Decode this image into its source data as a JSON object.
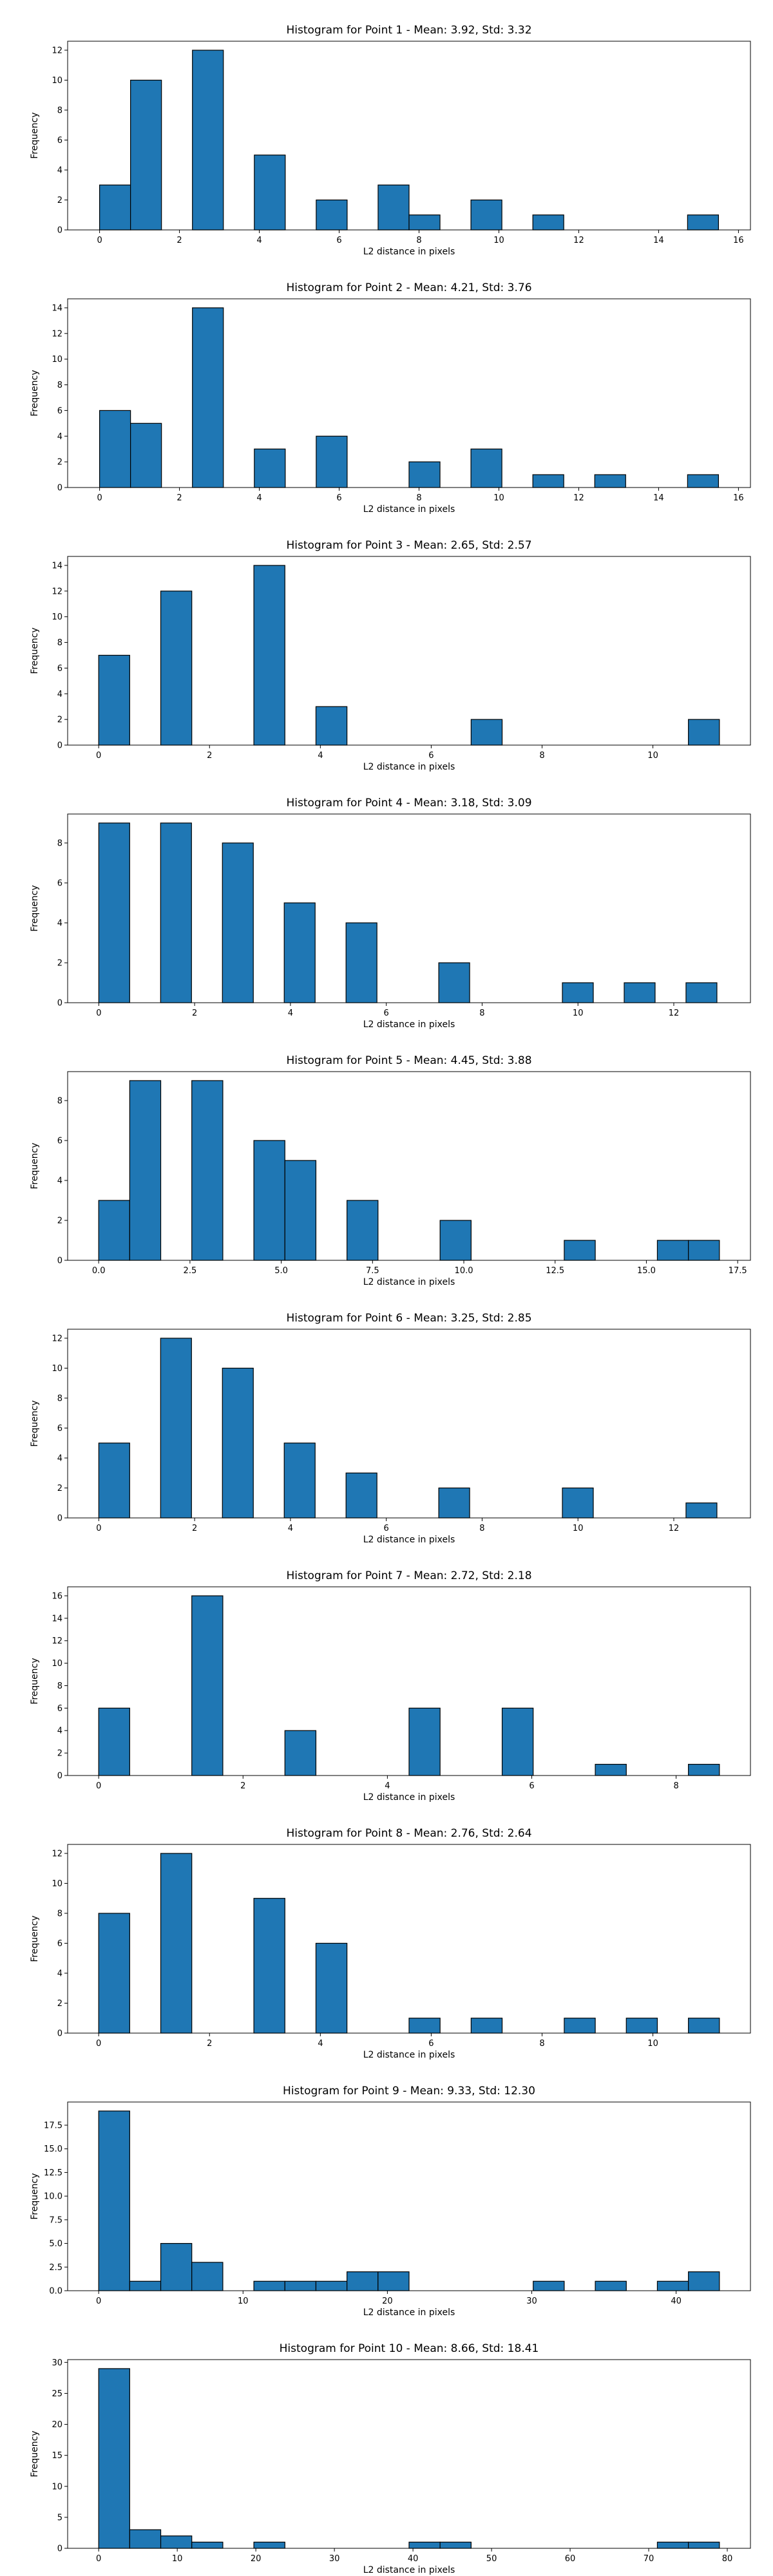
{
  "colors": {
    "bar_fill": "#1f77b4",
    "bar_edge": "#000000"
  },
  "chart_data": [
    {
      "type": "bar",
      "title": "Histogram for Point 1 - Mean: 3.92, Std: 3.32",
      "xlabel": "L2 distance in pixels",
      "ylabel": "Frequency",
      "xlim": [
        -0.8,
        16.3
      ],
      "ylim": [
        0,
        12.6
      ],
      "xticks": [
        0,
        2,
        4,
        6,
        8,
        10,
        12,
        14,
        16
      ],
      "xtick_labels": [
        "0",
        "2",
        "4",
        "6",
        "8",
        "10",
        "12",
        "14",
        "16"
      ],
      "yticks": [
        0,
        2,
        4,
        6,
        8,
        10,
        12
      ],
      "ytick_labels": [
        "0",
        "2",
        "4",
        "6",
        "8",
        "10",
        "12"
      ],
      "bin_width": 0.775,
      "bins": [
        {
          "x": 0.0,
          "count": 3
        },
        {
          "x": 0.775,
          "count": 10
        },
        {
          "x": 2.325,
          "count": 12
        },
        {
          "x": 3.875,
          "count": 5
        },
        {
          "x": 5.425,
          "count": 2
        },
        {
          "x": 6.975,
          "count": 3
        },
        {
          "x": 7.75,
          "count": 1
        },
        {
          "x": 9.3,
          "count": 2
        },
        {
          "x": 10.85,
          "count": 1
        },
        {
          "x": 14.725,
          "count": 1
        }
      ]
    },
    {
      "type": "bar",
      "title": "Histogram for Point 2 - Mean: 4.21, Std: 3.76",
      "xlabel": "L2 distance in pixels",
      "ylabel": "Frequency",
      "xlim": [
        -0.8,
        16.3
      ],
      "ylim": [
        0,
        14.7
      ],
      "xticks": [
        0,
        2,
        4,
        6,
        8,
        10,
        12,
        14,
        16
      ],
      "xtick_labels": [
        "0",
        "2",
        "4",
        "6",
        "8",
        "10",
        "12",
        "14",
        "16"
      ],
      "yticks": [
        0,
        2,
        4,
        6,
        8,
        10,
        12,
        14
      ],
      "ytick_labels": [
        "0",
        "2",
        "4",
        "6",
        "8",
        "10",
        "12",
        "14"
      ],
      "bin_width": 0.775,
      "bins": [
        {
          "x": 0.0,
          "count": 6
        },
        {
          "x": 0.775,
          "count": 5
        },
        {
          "x": 2.325,
          "count": 14
        },
        {
          "x": 3.875,
          "count": 3
        },
        {
          "x": 5.425,
          "count": 4
        },
        {
          "x": 7.75,
          "count": 2
        },
        {
          "x": 9.3,
          "count": 3
        },
        {
          "x": 10.85,
          "count": 1
        },
        {
          "x": 12.4,
          "count": 1
        },
        {
          "x": 14.725,
          "count": 1
        }
      ]
    },
    {
      "type": "bar",
      "title": "Histogram for Point 3 - Mean: 2.65, Std: 2.57",
      "xlabel": "L2 distance in pixels",
      "ylabel": "Frequency",
      "xlim": [
        -0.56,
        11.76
      ],
      "ylim": [
        0,
        14.7
      ],
      "xticks": [
        0,
        2,
        4,
        6,
        8,
        10
      ],
      "xtick_labels": [
        "0",
        "2",
        "4",
        "6",
        "8",
        "10"
      ],
      "yticks": [
        0,
        2,
        4,
        6,
        8,
        10,
        12,
        14
      ],
      "ytick_labels": [
        "0",
        "2",
        "4",
        "6",
        "8",
        "10",
        "12",
        "14"
      ],
      "bin_width": 0.56,
      "bins": [
        {
          "x": 0.0,
          "count": 7
        },
        {
          "x": 1.12,
          "count": 12
        },
        {
          "x": 2.8,
          "count": 14
        },
        {
          "x": 3.92,
          "count": 3
        },
        {
          "x": 6.72,
          "count": 2
        },
        {
          "x": 10.64,
          "count": 2
        }
      ]
    },
    {
      "type": "bar",
      "title": "Histogram for Point 4 - Mean: 3.18, Std: 3.09",
      "xlabel": "L2 distance in pixels",
      "ylabel": "Frequency",
      "xlim": [
        -0.65,
        13.6
      ],
      "ylim": [
        0,
        9.45
      ],
      "xticks": [
        0,
        2,
        4,
        6,
        8,
        10,
        12
      ],
      "xtick_labels": [
        "0",
        "2",
        "4",
        "6",
        "8",
        "10",
        "12"
      ],
      "yticks": [
        0,
        2,
        4,
        6,
        8
      ],
      "ytick_labels": [
        "0",
        "2",
        "4",
        "6",
        "8"
      ],
      "bin_width": 0.645,
      "bins": [
        {
          "x": 0.0,
          "count": 9
        },
        {
          "x": 1.29,
          "count": 9
        },
        {
          "x": 2.58,
          "count": 8
        },
        {
          "x": 3.87,
          "count": 5
        },
        {
          "x": 5.16,
          "count": 4
        },
        {
          "x": 7.095,
          "count": 2
        },
        {
          "x": 9.675,
          "count": 1
        },
        {
          "x": 10.965,
          "count": 1
        },
        {
          "x": 12.255,
          "count": 1
        }
      ]
    },
    {
      "type": "bar",
      "title": "Histogram for Point 5 - Mean: 4.45, Std: 3.88",
      "xlabel": "L2 distance in pixels",
      "ylabel": "Frequency",
      "xlim": [
        -0.85,
        17.85
      ],
      "ylim": [
        0,
        9.45
      ],
      "xticks": [
        0,
        2.5,
        5,
        7.5,
        10,
        12.5,
        15,
        17.5
      ],
      "xtick_labels": [
        "0.0",
        "2.5",
        "5.0",
        "7.5",
        "10.0",
        "12.5",
        "15.0",
        "17.5"
      ],
      "yticks": [
        0,
        2,
        4,
        6,
        8
      ],
      "ytick_labels": [
        "0",
        "2",
        "4",
        "6",
        "8"
      ],
      "bin_width": 0.85,
      "bins": [
        {
          "x": 0.0,
          "count": 3
        },
        {
          "x": 0.85,
          "count": 9
        },
        {
          "x": 2.55,
          "count": 9
        },
        {
          "x": 4.25,
          "count": 6
        },
        {
          "x": 5.1,
          "count": 5
        },
        {
          "x": 6.8,
          "count": 3
        },
        {
          "x": 9.35,
          "count": 2
        },
        {
          "x": 12.75,
          "count": 1
        },
        {
          "x": 15.3,
          "count": 1
        },
        {
          "x": 16.15,
          "count": 1
        }
      ]
    },
    {
      "type": "bar",
      "title": "Histogram for Point 6 - Mean: 3.25, Std: 2.85",
      "xlabel": "L2 distance in pixels",
      "ylabel": "Frequency",
      "xlim": [
        -0.65,
        13.6
      ],
      "ylim": [
        0,
        12.6
      ],
      "xticks": [
        0,
        2,
        4,
        6,
        8,
        10,
        12
      ],
      "xtick_labels": [
        "0",
        "2",
        "4",
        "6",
        "8",
        "10",
        "12"
      ],
      "yticks": [
        0,
        2,
        4,
        6,
        8,
        10,
        12
      ],
      "ytick_labels": [
        "0",
        "2",
        "4",
        "6",
        "8",
        "10",
        "12"
      ],
      "bin_width": 0.645,
      "bins": [
        {
          "x": 0.0,
          "count": 5
        },
        {
          "x": 1.29,
          "count": 12
        },
        {
          "x": 2.58,
          "count": 10
        },
        {
          "x": 3.87,
          "count": 5
        },
        {
          "x": 5.16,
          "count": 3
        },
        {
          "x": 7.095,
          "count": 2
        },
        {
          "x": 9.675,
          "count": 2
        },
        {
          "x": 12.255,
          "count": 1
        }
      ]
    },
    {
      "type": "bar",
      "title": "Histogram for Point 7 - Mean: 2.72, Std: 2.18",
      "xlabel": "L2 distance in pixels",
      "ylabel": "Frequency",
      "xlim": [
        -0.43,
        9.03
      ],
      "ylim": [
        0,
        16.8
      ],
      "xticks": [
        0,
        2,
        4,
        6,
        8
      ],
      "xtick_labels": [
        "0",
        "2",
        "4",
        "6",
        "8"
      ],
      "yticks": [
        0,
        2,
        4,
        6,
        8,
        10,
        12,
        14,
        16
      ],
      "ytick_labels": [
        "0",
        "2",
        "4",
        "6",
        "8",
        "10",
        "12",
        "14",
        "16"
      ],
      "bin_width": 0.43,
      "bins": [
        {
          "x": 0.0,
          "count": 6
        },
        {
          "x": 1.29,
          "count": 16
        },
        {
          "x": 2.58,
          "count": 4
        },
        {
          "x": 4.3,
          "count": 6
        },
        {
          "x": 5.59,
          "count": 6
        },
        {
          "x": 6.88,
          "count": 1
        },
        {
          "x": 8.17,
          "count": 1
        }
      ]
    },
    {
      "type": "bar",
      "title": "Histogram for Point 8 - Mean: 2.76, Std: 2.64",
      "xlabel": "L2 distance in pixels",
      "ylabel": "Frequency",
      "xlim": [
        -0.56,
        11.76
      ],
      "ylim": [
        0,
        12.6
      ],
      "xticks": [
        0,
        2,
        4,
        6,
        8,
        10
      ],
      "xtick_labels": [
        "0",
        "2",
        "4",
        "6",
        "8",
        "10"
      ],
      "yticks": [
        0,
        2,
        4,
        6,
        8,
        10,
        12
      ],
      "ytick_labels": [
        "0",
        "2",
        "4",
        "6",
        "8",
        "10",
        "12"
      ],
      "bin_width": 0.56,
      "bins": [
        {
          "x": 0.0,
          "count": 8
        },
        {
          "x": 1.12,
          "count": 12
        },
        {
          "x": 2.8,
          "count": 9
        },
        {
          "x": 3.92,
          "count": 6
        },
        {
          "x": 5.6,
          "count": 1
        },
        {
          "x": 6.72,
          "count": 1
        },
        {
          "x": 8.4,
          "count": 1
        },
        {
          "x": 9.52,
          "count": 1
        },
        {
          "x": 10.64,
          "count": 1
        }
      ]
    },
    {
      "type": "bar",
      "title": "Histogram for Point 9 - Mean: 9.33, Std: 12.30",
      "xlabel": "L2 distance in pixels",
      "ylabel": "Frequency",
      "xlim": [
        -2.15,
        45.15
      ],
      "ylim": [
        0,
        19.95
      ],
      "xticks": [
        0,
        10,
        20,
        30,
        40
      ],
      "xtick_labels": [
        "0",
        "10",
        "20",
        "30",
        "40"
      ],
      "yticks": [
        0,
        2.5,
        5,
        7.5,
        10,
        12.5,
        15,
        17.5
      ],
      "ytick_labels": [
        "0.0",
        "2.5",
        "5.0",
        "7.5",
        "10.0",
        "12.5",
        "15.0",
        "17.5"
      ],
      "bin_width": 2.15,
      "bins": [
        {
          "x": 0.0,
          "count": 19
        },
        {
          "x": 2.15,
          "count": 1
        },
        {
          "x": 4.3,
          "count": 5
        },
        {
          "x": 6.45,
          "count": 3
        },
        {
          "x": 10.75,
          "count": 1
        },
        {
          "x": 12.9,
          "count": 1
        },
        {
          "x": 15.05,
          "count": 1
        },
        {
          "x": 17.2,
          "count": 2
        },
        {
          "x": 19.35,
          "count": 2
        },
        {
          "x": 30.1,
          "count": 1
        },
        {
          "x": 34.4,
          "count": 1
        },
        {
          "x": 38.7,
          "count": 1
        },
        {
          "x": 40.85,
          "count": 2
        }
      ]
    },
    {
      "type": "bar",
      "title": "Histogram for Point 10 - Mean: 8.66, Std: 18.41",
      "xlabel": "L2 distance in pixels",
      "ylabel": "Frequency",
      "xlim": [
        -3.95,
        82.95
      ],
      "ylim": [
        0,
        30.45
      ],
      "xticks": [
        0,
        10,
        20,
        30,
        40,
        50,
        60,
        70,
        80
      ],
      "xtick_labels": [
        "0",
        "10",
        "20",
        "30",
        "40",
        "50",
        "60",
        "70",
        "80"
      ],
      "yticks": [
        0,
        5,
        10,
        15,
        20,
        25,
        30
      ],
      "ytick_labels": [
        "0",
        "5",
        "10",
        "15",
        "20",
        "25",
        "30"
      ],
      "bin_width": 3.95,
      "bins": [
        {
          "x": 0.0,
          "count": 29
        },
        {
          "x": 3.95,
          "count": 3
        },
        {
          "x": 7.9,
          "count": 2
        },
        {
          "x": 11.85,
          "count": 1
        },
        {
          "x": 19.75,
          "count": 1
        },
        {
          "x": 39.5,
          "count": 1
        },
        {
          "x": 43.45,
          "count": 1
        },
        {
          "x": 71.1,
          "count": 1
        },
        {
          "x": 75.05,
          "count": 1
        }
      ]
    }
  ]
}
